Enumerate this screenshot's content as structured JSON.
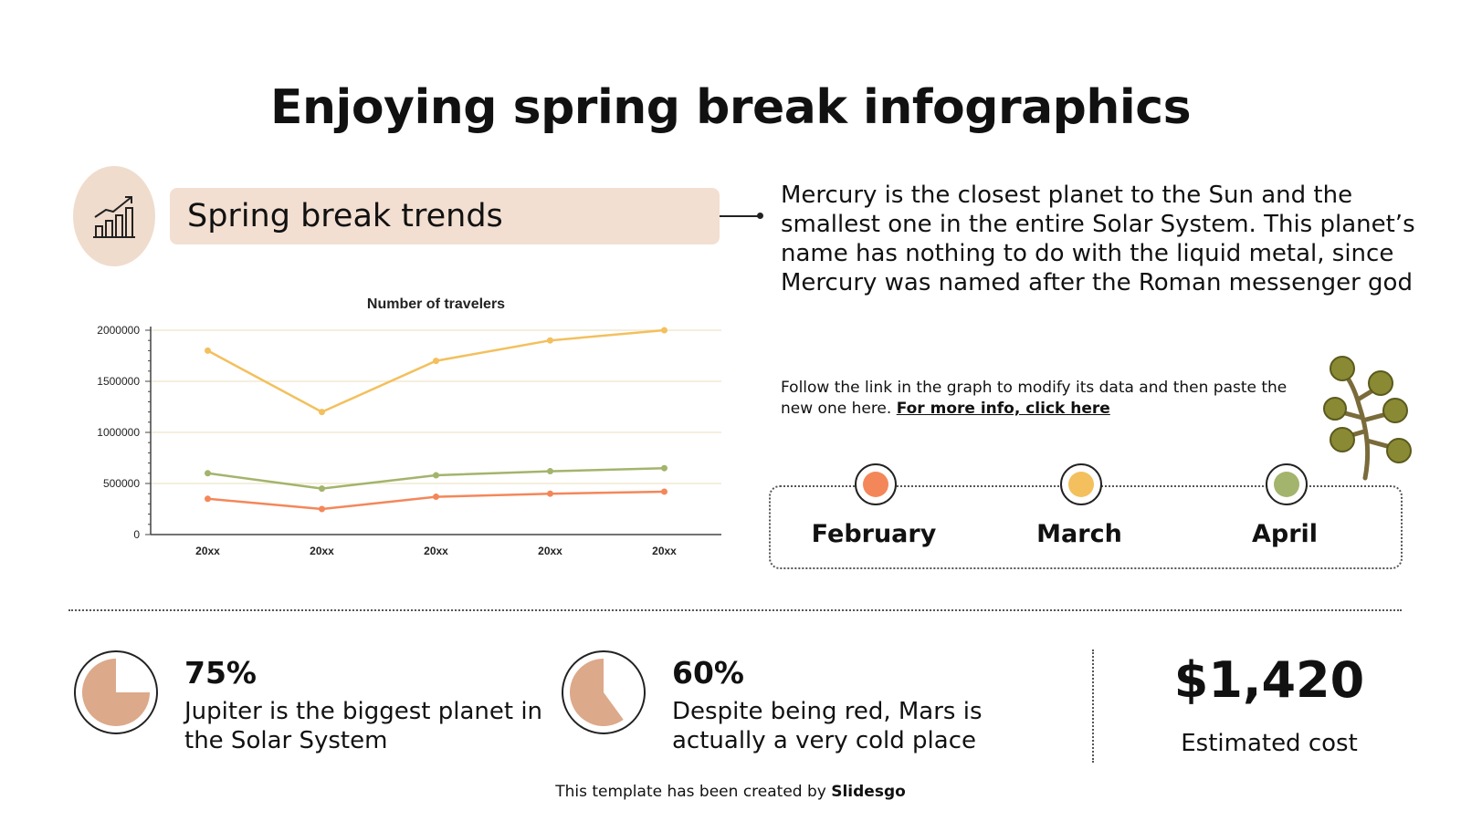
{
  "title": "Enjoying spring break infographics",
  "trend_label": "Spring break trends",
  "description": "Mercury is the closest planet to the Sun and the smallest one in the entire Solar System. This planet’s name has nothing to do with the liquid metal, since Mercury was named after the Roman messenger god",
  "note": {
    "text": "Follow the link in the graph to modify its data and then paste the new one here. ",
    "link": "For more info, click here"
  },
  "months": [
    {
      "label": "February",
      "color": "#f4875a"
    },
    {
      "label": "March",
      "color": "#f3c05d"
    },
    {
      "label": "April",
      "color": "#a3b46c"
    }
  ],
  "stats": [
    {
      "value": "75%",
      "text": "Jupiter is the biggest planet in the Solar System",
      "percent": 75
    },
    {
      "value": "60%",
      "text": "Despite being red, Mars is actually a very cold place",
      "percent": 60
    }
  ],
  "cost": {
    "value": "$1,420",
    "label": "Estimated cost"
  },
  "footer": {
    "text": "This template has been created by ",
    "brand": "Slidesgo"
  },
  "colors": {
    "accent_fill": "#f0dccd",
    "pie_fill": "#dca98a"
  },
  "icons": {
    "trend": "bar-chart-trend-icon",
    "branch": "olive-branch-icon"
  },
  "chart_data": {
    "type": "line",
    "title": "Number of travelers",
    "x": [
      "20xx",
      "20xx",
      "20xx",
      "20xx",
      "20xx"
    ],
    "y_ticks": [
      0,
      500000,
      1000000,
      1500000,
      2000000
    ],
    "ylim": [
      0,
      2000000
    ],
    "grid": true,
    "series": [
      {
        "values": [
          1800000,
          1200000,
          1700000,
          1900000,
          2000000
        ],
        "color": "#f3c05d"
      },
      {
        "values": [
          600000,
          450000,
          580000,
          620000,
          650000
        ],
        "color": "#a3b46c"
      },
      {
        "values": [
          350000,
          250000,
          370000,
          400000,
          420000
        ],
        "color": "#f4875a"
      }
    ]
  }
}
